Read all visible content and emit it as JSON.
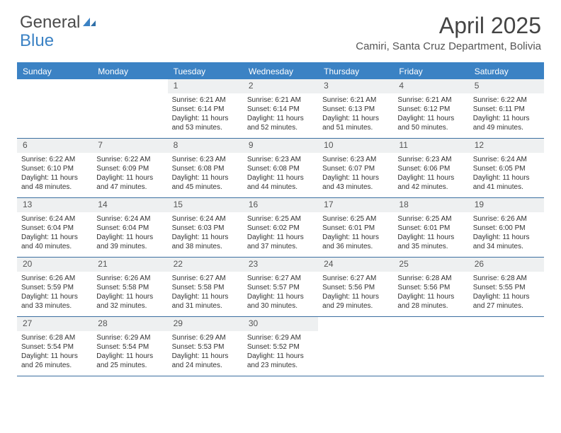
{
  "logo": {
    "text1": "General",
    "text2": "Blue"
  },
  "title": "April 2025",
  "location": "Camiri, Santa Cruz Department, Bolivia",
  "colors": {
    "brand_blue": "#3b82c4",
    "header_text": "#ffffff",
    "num_bg": "#eef0f1",
    "border": "#3b6fa0",
    "text": "#333333"
  },
  "day_names": [
    "Sunday",
    "Monday",
    "Tuesday",
    "Wednesday",
    "Thursday",
    "Friday",
    "Saturday"
  ],
  "weeks": [
    [
      {
        "n": "",
        "sunrise": "",
        "sunset": "",
        "daylight": ""
      },
      {
        "n": "",
        "sunrise": "",
        "sunset": "",
        "daylight": ""
      },
      {
        "n": "1",
        "sunrise": "Sunrise: 6:21 AM",
        "sunset": "Sunset: 6:14 PM",
        "daylight": "Daylight: 11 hours and 53 minutes."
      },
      {
        "n": "2",
        "sunrise": "Sunrise: 6:21 AM",
        "sunset": "Sunset: 6:14 PM",
        "daylight": "Daylight: 11 hours and 52 minutes."
      },
      {
        "n": "3",
        "sunrise": "Sunrise: 6:21 AM",
        "sunset": "Sunset: 6:13 PM",
        "daylight": "Daylight: 11 hours and 51 minutes."
      },
      {
        "n": "4",
        "sunrise": "Sunrise: 6:21 AM",
        "sunset": "Sunset: 6:12 PM",
        "daylight": "Daylight: 11 hours and 50 minutes."
      },
      {
        "n": "5",
        "sunrise": "Sunrise: 6:22 AM",
        "sunset": "Sunset: 6:11 PM",
        "daylight": "Daylight: 11 hours and 49 minutes."
      }
    ],
    [
      {
        "n": "6",
        "sunrise": "Sunrise: 6:22 AM",
        "sunset": "Sunset: 6:10 PM",
        "daylight": "Daylight: 11 hours and 48 minutes."
      },
      {
        "n": "7",
        "sunrise": "Sunrise: 6:22 AM",
        "sunset": "Sunset: 6:09 PM",
        "daylight": "Daylight: 11 hours and 47 minutes."
      },
      {
        "n": "8",
        "sunrise": "Sunrise: 6:23 AM",
        "sunset": "Sunset: 6:08 PM",
        "daylight": "Daylight: 11 hours and 45 minutes."
      },
      {
        "n": "9",
        "sunrise": "Sunrise: 6:23 AM",
        "sunset": "Sunset: 6:08 PM",
        "daylight": "Daylight: 11 hours and 44 minutes."
      },
      {
        "n": "10",
        "sunrise": "Sunrise: 6:23 AM",
        "sunset": "Sunset: 6:07 PM",
        "daylight": "Daylight: 11 hours and 43 minutes."
      },
      {
        "n": "11",
        "sunrise": "Sunrise: 6:23 AM",
        "sunset": "Sunset: 6:06 PM",
        "daylight": "Daylight: 11 hours and 42 minutes."
      },
      {
        "n": "12",
        "sunrise": "Sunrise: 6:24 AM",
        "sunset": "Sunset: 6:05 PM",
        "daylight": "Daylight: 11 hours and 41 minutes."
      }
    ],
    [
      {
        "n": "13",
        "sunrise": "Sunrise: 6:24 AM",
        "sunset": "Sunset: 6:04 PM",
        "daylight": "Daylight: 11 hours and 40 minutes."
      },
      {
        "n": "14",
        "sunrise": "Sunrise: 6:24 AM",
        "sunset": "Sunset: 6:04 PM",
        "daylight": "Daylight: 11 hours and 39 minutes."
      },
      {
        "n": "15",
        "sunrise": "Sunrise: 6:24 AM",
        "sunset": "Sunset: 6:03 PM",
        "daylight": "Daylight: 11 hours and 38 minutes."
      },
      {
        "n": "16",
        "sunrise": "Sunrise: 6:25 AM",
        "sunset": "Sunset: 6:02 PM",
        "daylight": "Daylight: 11 hours and 37 minutes."
      },
      {
        "n": "17",
        "sunrise": "Sunrise: 6:25 AM",
        "sunset": "Sunset: 6:01 PM",
        "daylight": "Daylight: 11 hours and 36 minutes."
      },
      {
        "n": "18",
        "sunrise": "Sunrise: 6:25 AM",
        "sunset": "Sunset: 6:01 PM",
        "daylight": "Daylight: 11 hours and 35 minutes."
      },
      {
        "n": "19",
        "sunrise": "Sunrise: 6:26 AM",
        "sunset": "Sunset: 6:00 PM",
        "daylight": "Daylight: 11 hours and 34 minutes."
      }
    ],
    [
      {
        "n": "20",
        "sunrise": "Sunrise: 6:26 AM",
        "sunset": "Sunset: 5:59 PM",
        "daylight": "Daylight: 11 hours and 33 minutes."
      },
      {
        "n": "21",
        "sunrise": "Sunrise: 6:26 AM",
        "sunset": "Sunset: 5:58 PM",
        "daylight": "Daylight: 11 hours and 32 minutes."
      },
      {
        "n": "22",
        "sunrise": "Sunrise: 6:27 AM",
        "sunset": "Sunset: 5:58 PM",
        "daylight": "Daylight: 11 hours and 31 minutes."
      },
      {
        "n": "23",
        "sunrise": "Sunrise: 6:27 AM",
        "sunset": "Sunset: 5:57 PM",
        "daylight": "Daylight: 11 hours and 30 minutes."
      },
      {
        "n": "24",
        "sunrise": "Sunrise: 6:27 AM",
        "sunset": "Sunset: 5:56 PM",
        "daylight": "Daylight: 11 hours and 29 minutes."
      },
      {
        "n": "25",
        "sunrise": "Sunrise: 6:28 AM",
        "sunset": "Sunset: 5:56 PM",
        "daylight": "Daylight: 11 hours and 28 minutes."
      },
      {
        "n": "26",
        "sunrise": "Sunrise: 6:28 AM",
        "sunset": "Sunset: 5:55 PM",
        "daylight": "Daylight: 11 hours and 27 minutes."
      }
    ],
    [
      {
        "n": "27",
        "sunrise": "Sunrise: 6:28 AM",
        "sunset": "Sunset: 5:54 PM",
        "daylight": "Daylight: 11 hours and 26 minutes."
      },
      {
        "n": "28",
        "sunrise": "Sunrise: 6:29 AM",
        "sunset": "Sunset: 5:54 PM",
        "daylight": "Daylight: 11 hours and 25 minutes."
      },
      {
        "n": "29",
        "sunrise": "Sunrise: 6:29 AM",
        "sunset": "Sunset: 5:53 PM",
        "daylight": "Daylight: 11 hours and 24 minutes."
      },
      {
        "n": "30",
        "sunrise": "Sunrise: 6:29 AM",
        "sunset": "Sunset: 5:52 PM",
        "daylight": "Daylight: 11 hours and 23 minutes."
      },
      {
        "n": "",
        "sunrise": "",
        "sunset": "",
        "daylight": ""
      },
      {
        "n": "",
        "sunrise": "",
        "sunset": "",
        "daylight": ""
      },
      {
        "n": "",
        "sunrise": "",
        "sunset": "",
        "daylight": ""
      }
    ]
  ]
}
